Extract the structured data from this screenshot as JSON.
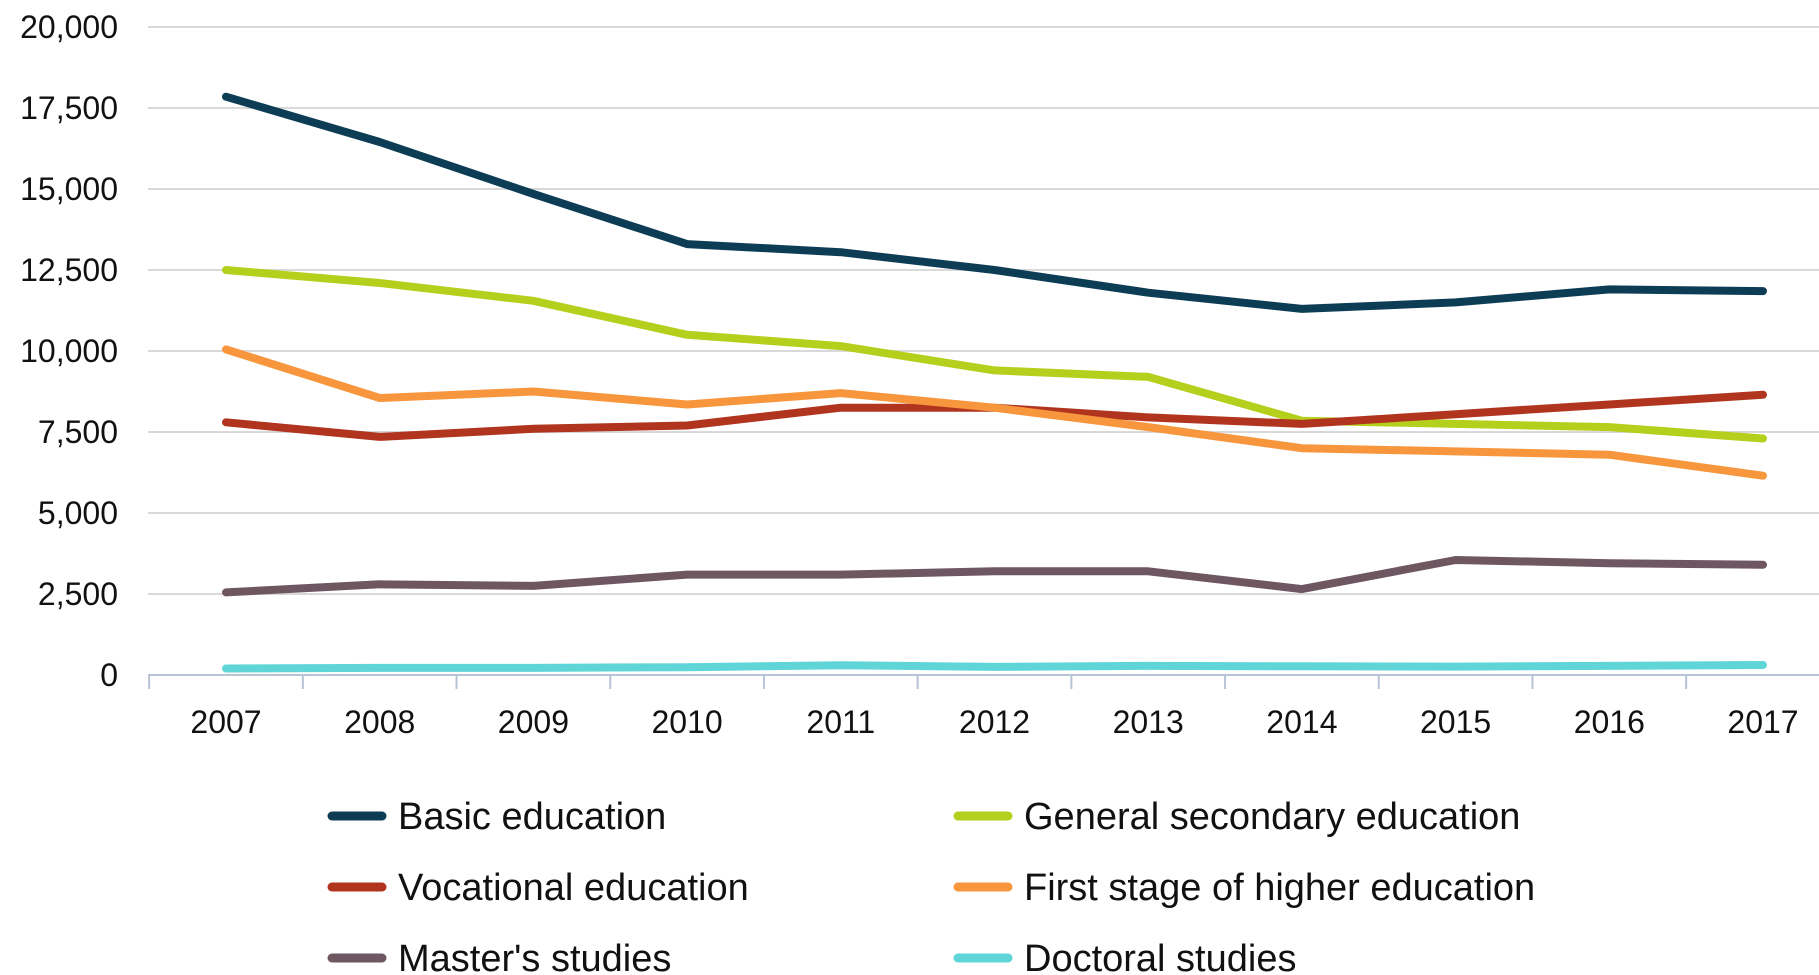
{
  "chart_data": {
    "type": "line",
    "title": "",
    "xlabel": "",
    "ylabel": "",
    "categories": [
      "2007",
      "2008",
      "2009",
      "2010",
      "2011",
      "2012",
      "2013",
      "2014",
      "2015",
      "2016",
      "2017"
    ],
    "ylim": [
      0,
      20000
    ],
    "yticks": [
      0,
      2500,
      5000,
      7500,
      10000,
      12500,
      15000,
      17500,
      20000
    ],
    "ytick_labels": [
      "0",
      "2,500",
      "5,000",
      "7,500",
      "10,000",
      "12,500",
      "15,000",
      "17,500",
      "20,000"
    ],
    "grid": true,
    "legend_position": "bottom",
    "series": [
      {
        "name": "Basic education",
        "color": "#0d3c55",
        "values": [
          17850,
          16450,
          14850,
          13300,
          13050,
          12500,
          11800,
          11300,
          11500,
          11900,
          11850
        ]
      },
      {
        "name": "General secondary education",
        "color": "#b5cf1d",
        "values": [
          12500,
          12100,
          11550,
          10500,
          10150,
          9400,
          9200,
          7850,
          7750,
          7650,
          7300
        ]
      },
      {
        "name": "Vocational education",
        "color": "#b0341e",
        "values": [
          7800,
          7350,
          7600,
          7700,
          8250,
          8250,
          7950,
          7750,
          8050,
          8350,
          8650
        ]
      },
      {
        "name": "First stage of higher education",
        "color": "#f7963c",
        "values": [
          10050,
          8550,
          8750,
          8350,
          8700,
          8250,
          7650,
          7000,
          6900,
          6800,
          6150
        ]
      },
      {
        "name": "Master's studies",
        "color": "#6e5760",
        "values": [
          2550,
          2800,
          2750,
          3100,
          3100,
          3200,
          3200,
          2650,
          3550,
          3450,
          3400
        ]
      },
      {
        "name": "Doctoral studies",
        "color": "#5fd5d8",
        "values": [
          200,
          220,
          220,
          240,
          300,
          250,
          280,
          270,
          260,
          280,
          310
        ]
      }
    ]
  }
}
